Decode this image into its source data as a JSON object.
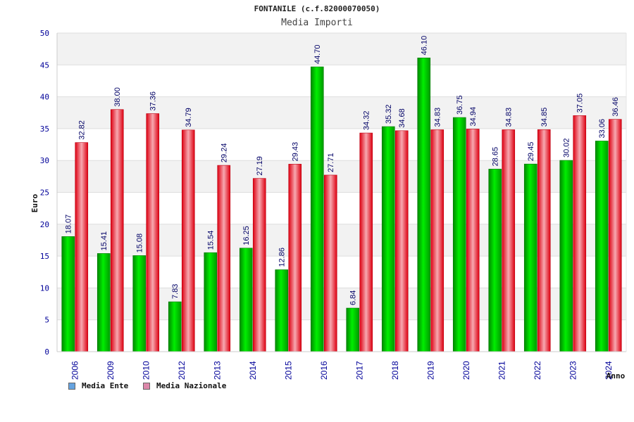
{
  "chart_data": {
    "type": "bar",
    "title": "FONTANILE (c.f.82000070050)",
    "subtitle": "Media Importi",
    "ylabel": "Euro",
    "xlabel": "Anno",
    "ylim": [
      0,
      50
    ],
    "yticks": [
      0,
      5,
      10,
      15,
      20,
      25,
      30,
      35,
      40,
      45,
      50
    ],
    "grid": true,
    "legend_position": "bottom-left",
    "categories": [
      "2006",
      "2009",
      "2010",
      "2012",
      "2013",
      "2014",
      "2015",
      "2016",
      "2017",
      "2018",
      "2019",
      "2020",
      "2021",
      "2022",
      "2023",
      "2024"
    ],
    "series": [
      {
        "name": "Media Ente",
        "color": "#00cc00",
        "legend_color": "#66a3e0",
        "values": [
          18.07,
          15.41,
          15.08,
          7.83,
          15.54,
          16.25,
          12.86,
          44.7,
          6.84,
          35.32,
          46.1,
          36.75,
          28.65,
          29.45,
          30.02,
          33.06
        ],
        "labels": [
          "18.07",
          "15.41",
          "15.08",
          "7.83",
          "15.54",
          "16.25",
          "12.86",
          "44.70",
          "6.84",
          "35.32",
          "46.10",
          "36.75",
          "28.65",
          "29.45",
          "30.02",
          "33.06"
        ]
      },
      {
        "name": "Media Nazionale",
        "color": "#ee2222",
        "legend_color": "#dd88aa",
        "values": [
          32.82,
          38.0,
          37.36,
          34.79,
          29.24,
          27.19,
          29.43,
          27.71,
          34.32,
          34.68,
          34.83,
          34.94,
          34.83,
          34.85,
          37.05,
          36.46
        ],
        "labels": [
          "32.82",
          "38.00",
          "37.36",
          "34.79",
          "29.24",
          "27.19",
          "29.43",
          "27.71",
          "34.32",
          "34.68",
          "34.83",
          "34.94",
          "34.83",
          "34.85",
          "37.05",
          "36.46"
        ]
      }
    ]
  }
}
